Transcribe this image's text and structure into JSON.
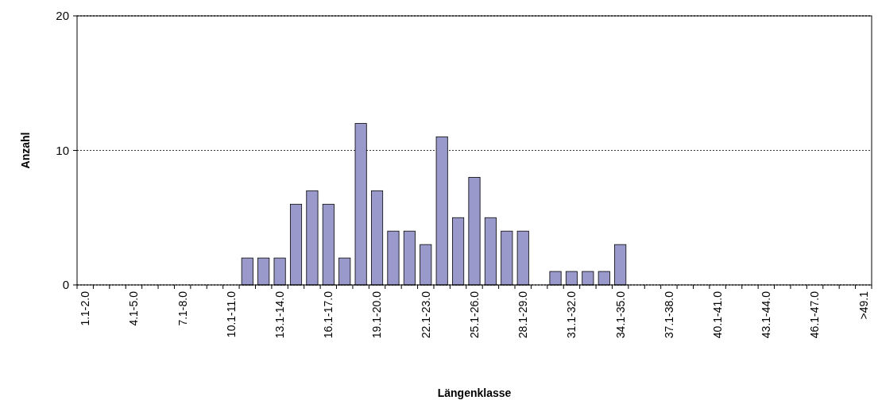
{
  "chart_data": {
    "type": "bar",
    "xlabel": "Längenklasse",
    "ylabel": "Anzahl",
    "categories": [
      "1.1-2.0",
      null,
      null,
      "4.1-5.0",
      null,
      null,
      "7.1-8.0",
      null,
      null,
      "10.1-11.0",
      null,
      null,
      "13.1-14.0",
      null,
      null,
      "16.1-17.0",
      null,
      null,
      "19.1-20.0",
      null,
      null,
      "22.1-23.0",
      null,
      null,
      "25.1-26.0",
      null,
      null,
      "28.1-29.0",
      null,
      null,
      "31.1-32.0",
      null,
      null,
      "34.1-35.0",
      null,
      null,
      "37.1-38.0",
      null,
      null,
      "40.1-41.0",
      null,
      null,
      "43.1-44.0",
      null,
      null,
      "46.1-47.0",
      null,
      null,
      ">49.1"
    ],
    "values": [
      0,
      0,
      0,
      0,
      0,
      0,
      0,
      0,
      0,
      0,
      2,
      2,
      2,
      6,
      7,
      6,
      2,
      12,
      7,
      4,
      4,
      3,
      11,
      5,
      8,
      5,
      4,
      4,
      0,
      1,
      1,
      1,
      1,
      3,
      0,
      0,
      0,
      0,
      0,
      0,
      0,
      0,
      0,
      0,
      0,
      0,
      0,
      0,
      0
    ],
    "color": "#9999cc",
    "ylim": [
      0,
      20
    ],
    "yticks": [
      0,
      10,
      20
    ],
    "grid": "y"
  }
}
